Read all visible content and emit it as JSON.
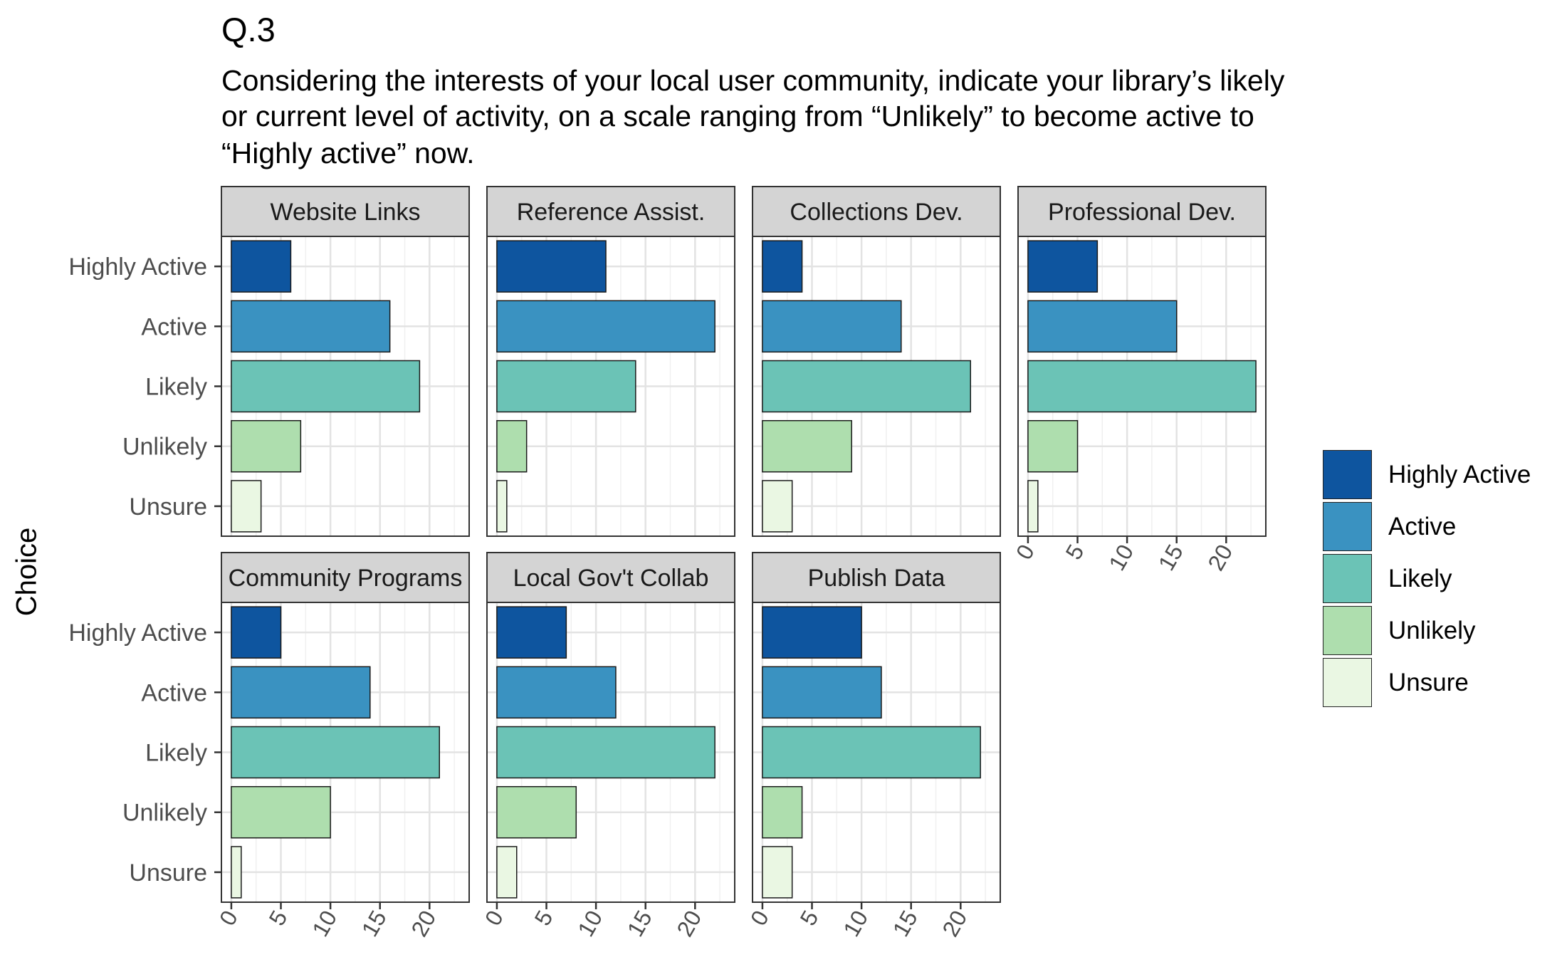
{
  "title": "Q.3",
  "subtitle_lines": [
    "Considering the interests of your local user community, indicate your library’s likely",
    "or current level of activity, on a scale ranging from “Unlikely” to become active to",
    "“Highly active” now."
  ],
  "chart_data": {
    "type": "bar",
    "orientation": "horizontal",
    "ylabel": "Choice",
    "xlabel": "",
    "categories": [
      "Highly Active",
      "Active",
      "Likely",
      "Unlikely",
      "Unsure"
    ],
    "colors": {
      "Highly Active": "#0e559f",
      "Active": "#3a92c1",
      "Likely": "#6bc3b6",
      "Unlikely": "#aedeae",
      "Unsure": "#eaf7e3"
    },
    "xlim": [
      -1,
      24
    ],
    "x_ticks": [
      0,
      5,
      10,
      15,
      20
    ],
    "grid": true,
    "legend_position": "right",
    "legend_entries": [
      "Highly Active",
      "Active",
      "Likely",
      "Unlikely",
      "Unsure"
    ],
    "panels": [
      {
        "name": "Website Links",
        "values": [
          6,
          16,
          19,
          7,
          3
        ]
      },
      {
        "name": "Reference Assist.",
        "values": [
          11,
          22,
          14,
          3,
          1
        ]
      },
      {
        "name": "Collections Dev.",
        "values": [
          4,
          14,
          21,
          9,
          3
        ]
      },
      {
        "name": "Professional Dev.",
        "values": [
          7,
          15,
          23,
          5,
          1
        ]
      },
      {
        "name": "Community Programs",
        "values": [
          5,
          14,
          21,
          10,
          1
        ]
      },
      {
        "name": "Local Gov't Collab",
        "values": [
          7,
          12,
          22,
          8,
          2
        ]
      },
      {
        "name": "Publish Data",
        "values": [
          10,
          12,
          22,
          4,
          3
        ]
      }
    ]
  }
}
